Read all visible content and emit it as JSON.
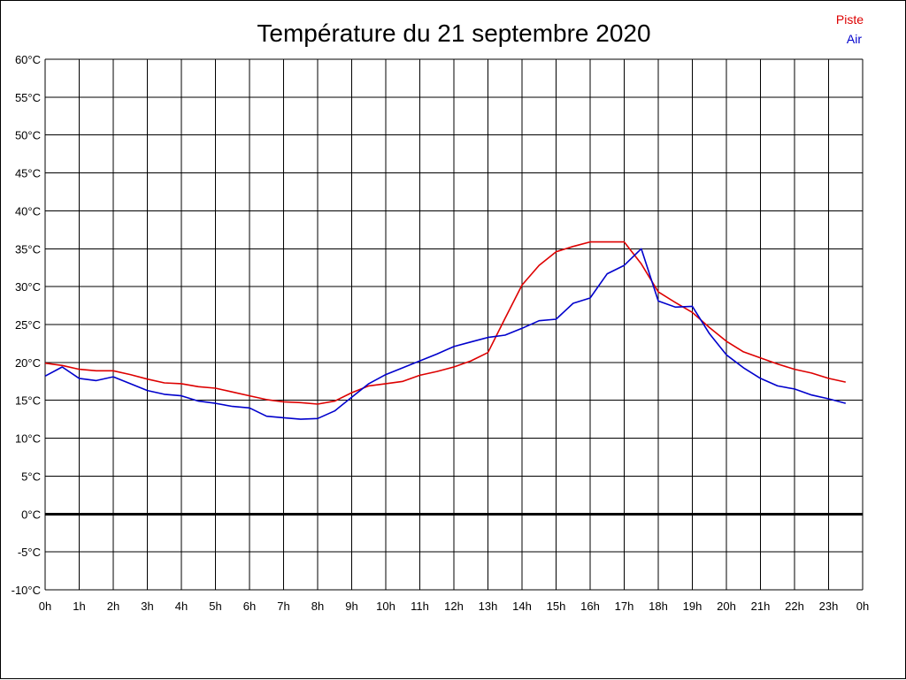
{
  "chart_data": {
    "type": "line",
    "title": "Température du 21 septembre 2020",
    "xlabel": "",
    "ylabel": "",
    "x_hours": [
      0,
      0.5,
      1,
      1.5,
      2,
      2.5,
      3,
      3.5,
      4,
      4.5,
      5,
      5.5,
      6,
      6.5,
      7,
      7.5,
      8,
      8.5,
      9,
      9.5,
      10,
      10.5,
      11,
      11.5,
      12,
      12.5,
      13,
      13.5,
      14,
      14.5,
      15,
      15.5,
      16,
      16.5,
      17,
      17.5,
      18,
      18.5,
      19,
      19.5,
      20,
      20.5,
      21,
      21.5,
      22,
      22.5,
      23,
      23.5
    ],
    "x_tick_labels": [
      "0h",
      "1h",
      "2h",
      "3h",
      "4h",
      "5h",
      "6h",
      "7h",
      "8h",
      "9h",
      "10h",
      "11h",
      "12h",
      "13h",
      "14h",
      "15h",
      "16h",
      "17h",
      "18h",
      "19h",
      "20h",
      "21h",
      "22h",
      "23h",
      "0h"
    ],
    "y_tick_labels": [
      "60°C",
      "55°C",
      "50°C",
      "45°C",
      "40°C",
      "35°C",
      "30°C",
      "25°C",
      "20°C",
      "15°C",
      "10°C",
      "5°C",
      "0°C",
      "-5°C",
      "-10°C"
    ],
    "ylim": [
      -10,
      60
    ],
    "xlim": [
      0,
      24
    ],
    "grid": true,
    "legend_position": "top-right",
    "series": [
      {
        "name": "Piste",
        "color": "#dd0000",
        "values": [
          19.9,
          19.6,
          19.1,
          18.9,
          18.9,
          18.4,
          17.8,
          17.3,
          17.2,
          16.8,
          16.6,
          16.1,
          15.6,
          15.1,
          14.8,
          14.7,
          14.5,
          14.9,
          16.0,
          16.9,
          17.2,
          17.5,
          18.3,
          18.8,
          19.4,
          20.2,
          21.3,
          25.8,
          30.2,
          32.8,
          34.6,
          35.3,
          35.9,
          35.9,
          35.9,
          33.0,
          29.3,
          27.9,
          26.6,
          24.6,
          22.8,
          21.4,
          20.6,
          19.8,
          19.1,
          18.6,
          17.9,
          17.4
        ]
      },
      {
        "name": "Air",
        "color": "#0000cc",
        "values": [
          18.2,
          19.4,
          17.9,
          17.6,
          18.1,
          17.2,
          16.3,
          15.8,
          15.6,
          14.9,
          14.6,
          14.2,
          14.0,
          12.9,
          12.7,
          12.5,
          12.6,
          13.6,
          15.4,
          17.2,
          18.4,
          19.3,
          20.2,
          21.1,
          22.1,
          22.7,
          23.3,
          23.6,
          24.5,
          25.5,
          25.7,
          27.8,
          28.5,
          31.7,
          32.8,
          35.0,
          28.1,
          27.3,
          27.4,
          23.8,
          21.0,
          19.3,
          17.9,
          16.9,
          16.5,
          15.7,
          15.2,
          14.6
        ]
      }
    ]
  }
}
